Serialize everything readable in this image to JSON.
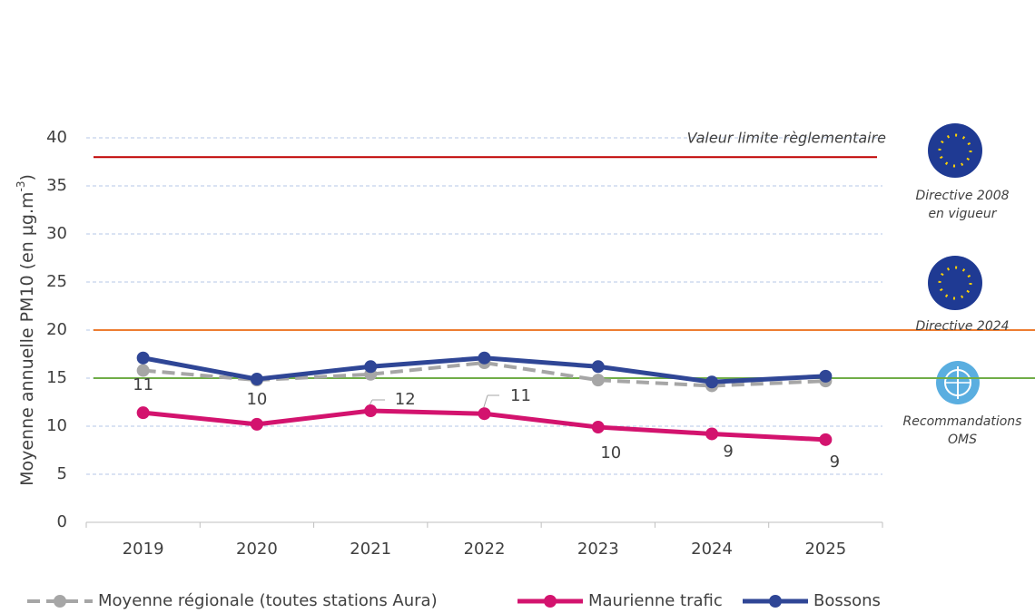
{
  "chart_data": {
    "type": "line",
    "y_label": {
      "text": "Moyenne annuelle PM10 (en µg.m",
      "superscript": "-3",
      "suffix": ")"
    },
    "categories": [
      "2019",
      "2020",
      "2021",
      "2022",
      "2023",
      "2024",
      "2025"
    ],
    "series": [
      {
        "name": "Moyenne régionale (toutes stations Aura)",
        "color": "#a6a6a6",
        "dashed": true,
        "values": [
          15.8,
          14.8,
          15.4,
          16.6,
          14.8,
          14.2,
          14.7
        ]
      },
      {
        "name": "Maurienne trafic",
        "color": "#d3136e",
        "dashed": false,
        "values": [
          11.4,
          10.2,
          11.6,
          11.3,
          9.9,
          9.2,
          8.6
        ],
        "value_labels": [
          "11",
          "10",
          "12",
          "11",
          "10",
          "9",
          "9"
        ]
      },
      {
        "name": "Bossons",
        "color": "#2f4696",
        "dashed": false,
        "values": [
          17.1,
          14.9,
          16.2,
          17.1,
          16.2,
          14.6,
          15.2
        ]
      }
    ],
    "ylim": [
      0,
      40
    ],
    "yticks": [
      0,
      5,
      10,
      15,
      20,
      25,
      30,
      35,
      40
    ],
    "grid": true,
    "legend": "bottom",
    "reference_lines": [
      {
        "value": 38,
        "color": "#c00000",
        "label": "Valeur limite règlementaire",
        "source": [
          "Directive 2008",
          "en vigueur"
        ],
        "source_color": "#2f4696"
      },
      {
        "value": 20,
        "color": "#ed7d31",
        "source": [
          "Directive 2024"
        ],
        "source_color": "#2f4696"
      },
      {
        "value": 15,
        "color": "#70ad47",
        "source": [
          "Recommandations",
          "OMS"
        ],
        "source_color": "#70ad47"
      }
    ]
  }
}
